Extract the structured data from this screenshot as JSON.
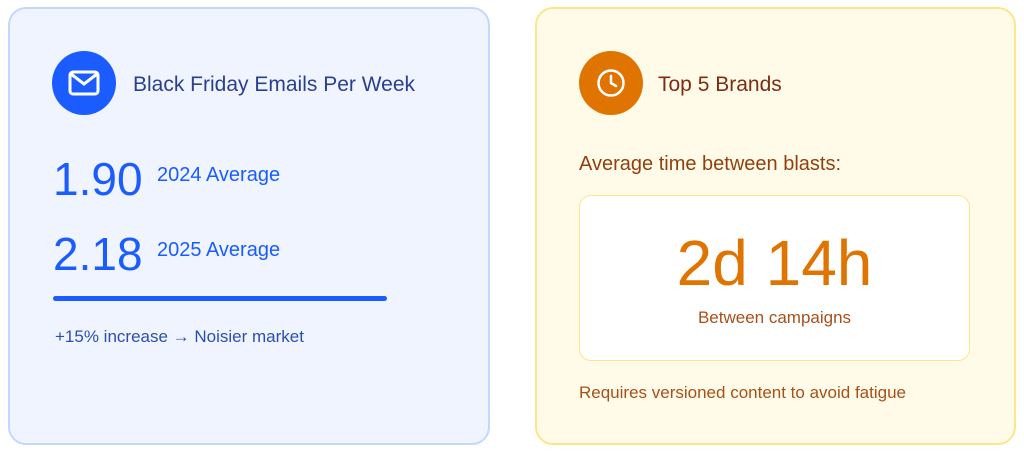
{
  "colors": {
    "blue": "#1a5cff",
    "orange": "#e07400",
    "brown": "#92400e",
    "navy": "#1e3a8a"
  },
  "left_card": {
    "icon": "mail-icon",
    "title": "Black Friday Emails Per Week",
    "stats": [
      {
        "value": "1.90",
        "label": "2024 Average"
      },
      {
        "value": "2.18",
        "label": "2025 Average"
      }
    ],
    "footer": "+15% increase → Noisier market"
  },
  "right_card": {
    "icon": "clock-icon",
    "title": "Top 5 Brands",
    "subtitle": "Average time between blasts:",
    "metric": {
      "value": "2d 14h",
      "caption": "Between campaigns"
    },
    "footer": "Requires versioned content to avoid fatigue"
  }
}
